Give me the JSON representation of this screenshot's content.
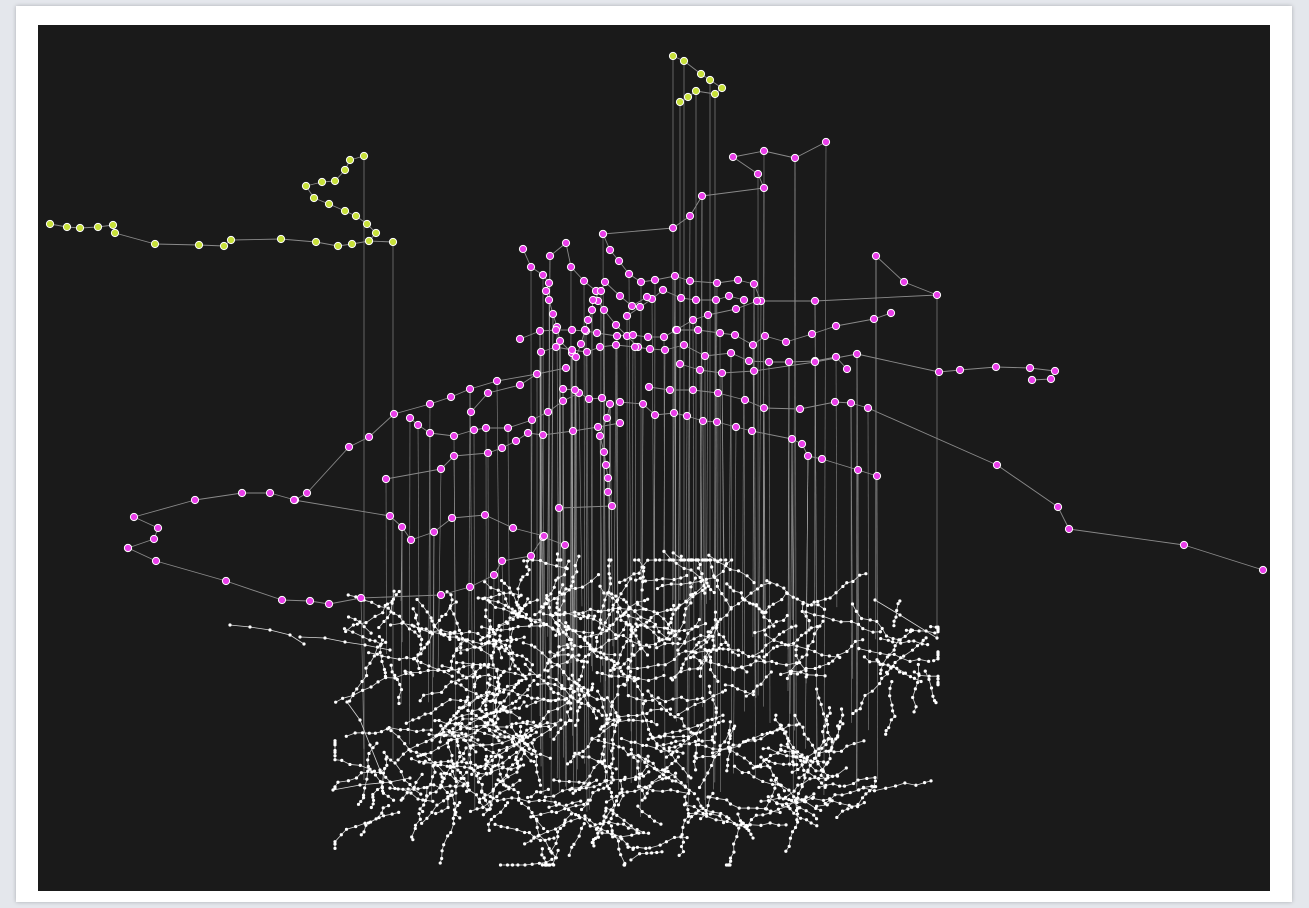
{
  "diagram": {
    "kind": "multilayer-network",
    "colors": {
      "background": "#1a1a1a",
      "frame": "#ffffff",
      "page": "#e4e7ec",
      "edge": "#8a8a8a",
      "interlayer_edge": "#b5b5b5",
      "bottom_layer_node": "#ffffff",
      "middle_layer_node": "#e93ee9",
      "top_layer_node": "#c7e03a",
      "node_stroke": "#ffffff"
    },
    "layers": [
      {
        "id": "bottom",
        "color": "#ffffff"
      },
      {
        "id": "middle",
        "color": "#e93ee9"
      },
      {
        "id": "top",
        "color": "#c7e03a"
      }
    ]
  }
}
